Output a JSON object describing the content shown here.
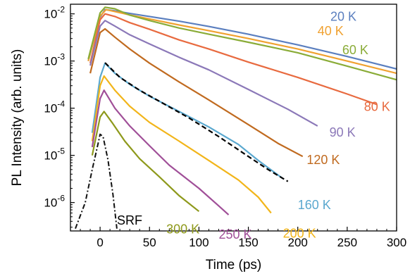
{
  "chart_data": {
    "type": "line",
    "xlabel": "Time (ps)",
    "ylabel": "PL Intensity (arb. units)",
    "xlim": [
      -30,
      300
    ],
    "ylim": [
      2.5e-07,
      0.016
    ],
    "yscale": "log",
    "grid": false,
    "legend": "inline labels next to curves",
    "xticks": [
      {
        "value": 0,
        "label": "0"
      },
      {
        "value": 50,
        "label": "50"
      },
      {
        "value": 100,
        "label": "100"
      },
      {
        "value": 150,
        "label": "150"
      },
      {
        "value": 200,
        "label": "200"
      },
      {
        "value": 250,
        "label": "250"
      },
      {
        "value": 300,
        "label": "300"
      }
    ],
    "yticks": [
      {
        "value": 0.01,
        "base": "10",
        "exp": "-2"
      },
      {
        "value": 0.001,
        "base": "10",
        "exp": "-3"
      },
      {
        "value": 0.0001,
        "base": "10",
        "exp": "-4"
      },
      {
        "value": 1e-05,
        "base": "10",
        "exp": "-5"
      },
      {
        "value": 1e-06,
        "base": "10",
        "exp": "-6"
      }
    ],
    "series": [
      {
        "name": "20 K",
        "color": "#5b7fbf",
        "label_x": 233,
        "label_y": 0.0071,
        "points": [
          [
            -12,
            0.001
          ],
          [
            0,
            0.0085
          ],
          [
            5,
            0.0123
          ],
          [
            15,
            0.0116
          ],
          [
            30,
            0.0102
          ],
          [
            50,
            0.0088
          ],
          [
            80,
            0.007
          ],
          [
            110,
            0.0054
          ],
          [
            150,
            0.0037
          ],
          [
            200,
            0.0022
          ],
          [
            250,
            0.00125
          ],
          [
            300,
            0.00068
          ]
        ]
      },
      {
        "name": "40 K",
        "color": "#f0a130",
        "label_x": 220,
        "label_y": 0.0035,
        "points": [
          [
            -12,
            0.001
          ],
          [
            0,
            0.009
          ],
          [
            6,
            0.0123
          ],
          [
            15,
            0.0112
          ],
          [
            30,
            0.0095
          ],
          [
            50,
            0.0078
          ],
          [
            80,
            0.0058
          ],
          [
            110,
            0.0044
          ],
          [
            150,
            0.003
          ],
          [
            200,
            0.0018
          ],
          [
            250,
            0.001
          ],
          [
            300,
            0.00055
          ]
        ]
      },
      {
        "name": "60 K",
        "color": "#8aac38",
        "label_x": 245,
        "label_y": 0.0014,
        "points": [
          [
            -12,
            0.0011
          ],
          [
            0,
            0.0105
          ],
          [
            5,
            0.0138
          ],
          [
            15,
            0.0128
          ],
          [
            30,
            0.0094
          ],
          [
            50,
            0.0072
          ],
          [
            80,
            0.005
          ],
          [
            110,
            0.0037
          ],
          [
            150,
            0.0025
          ],
          [
            200,
            0.0015
          ],
          [
            250,
            0.00078
          ],
          [
            300,
            0.0004
          ]
        ]
      },
      {
        "name": "80 K",
        "color": "#e86a3f",
        "label_x": 267,
        "label_y": 8.8e-05,
        "points": [
          [
            -10,
            0.0009
          ],
          [
            0,
            0.0075
          ],
          [
            5,
            0.01
          ],
          [
            15,
            0.0088
          ],
          [
            30,
            0.0065
          ],
          [
            50,
            0.0047
          ],
          [
            80,
            0.0028
          ],
          [
            110,
            0.0018
          ],
          [
            150,
            0.00095
          ],
          [
            200,
            0.00045
          ],
          [
            250,
            0.0002
          ],
          [
            280,
            0.00012
          ]
        ]
      },
      {
        "name": "90 K",
        "color": "#8b78b8",
        "label_x": 232,
        "label_y": 2.5e-05,
        "points": [
          [
            -10,
            0.0008
          ],
          [
            0,
            0.0055
          ],
          [
            5,
            0.0072
          ],
          [
            15,
            0.0055
          ],
          [
            30,
            0.0036
          ],
          [
            50,
            0.0023
          ],
          [
            80,
            0.0012
          ],
          [
            110,
            0.00065
          ],
          [
            150,
            0.00025
          ],
          [
            190,
            9.5e-05
          ],
          [
            220,
            4.2e-05
          ]
        ]
      },
      {
        "name": "120 K",
        "color": "#c06a1f",
        "label_x": 209,
        "label_y": 6.5e-06,
        "points": [
          [
            -10,
            0.00055
          ],
          [
            0,
            0.004
          ],
          [
            5,
            0.0048
          ],
          [
            15,
            0.0032
          ],
          [
            30,
            0.0018
          ],
          [
            50,
            0.0009
          ],
          [
            80,
            0.00036
          ],
          [
            110,
            0.00015
          ],
          [
            150,
            4.5e-05
          ],
          [
            180,
            1.8e-05
          ],
          [
            205,
            9.5e-06
          ]
        ]
      },
      {
        "name": "160 K",
        "color": "#5aa8cf",
        "label_x": 200,
        "label_y": 7.2e-07,
        "points": [
          [
            -8,
            3e-05
          ],
          [
            0,
            0.00045
          ],
          [
            5,
            0.0009
          ],
          [
            15,
            0.00055
          ],
          [
            30,
            0.00032
          ],
          [
            50,
            0.00018
          ],
          [
            80,
            8.5e-05
          ],
          [
            110,
            4e-05
          ],
          [
            140,
            1.7e-05
          ],
          [
            160,
            7.8e-06
          ],
          [
            185,
            3.2e-06
          ]
        ]
      },
      {
        "name": "200 K",
        "color": "#f2b51a",
        "label_x": 185,
        "label_y": 1.8e-07,
        "points": [
          [
            -8,
            2e-05
          ],
          [
            0,
            0.0003
          ],
          [
            4,
            0.00048
          ],
          [
            15,
            0.00024
          ],
          [
            30,
            0.00011
          ],
          [
            50,
            5e-05
          ],
          [
            80,
            2e-05
          ],
          [
            110,
            7.8e-06
          ],
          [
            140,
            3e-06
          ],
          [
            160,
            1.3e-06
          ],
          [
            173,
            6e-07
          ]
        ]
      },
      {
        "name": "250 K",
        "color": "#a04f98",
        "label_x": 120,
        "label_y": 1.7e-07,
        "points": [
          [
            -8,
            1.5e-05
          ],
          [
            0,
            0.00016
          ],
          [
            4,
            0.00024
          ],
          [
            15,
            0.0001
          ],
          [
            30,
            4.2e-05
          ],
          [
            50,
            1.6e-05
          ],
          [
            70,
            6.2e-06
          ],
          [
            100,
            2e-06
          ],
          [
            120,
            8.5e-07
          ],
          [
            130,
            5.5e-07
          ]
        ]
      },
      {
        "name": "300 K",
        "color": "#8e991b",
        "label_x": 67,
        "label_y": 2.2e-07,
        "points": [
          [
            -8,
            1e-05
          ],
          [
            0,
            6.5e-05
          ],
          [
            4,
            8.5e-05
          ],
          [
            12,
            5e-05
          ],
          [
            25,
            2e-05
          ],
          [
            40,
            8.5e-06
          ],
          [
            60,
            3.5e-06
          ],
          [
            80,
            1.4e-06
          ],
          [
            100,
            6.5e-07
          ]
        ]
      },
      {
        "name": "SRF",
        "color": "#111111",
        "label_x": 17,
        "label_y": 3.4e-07,
        "points": [
          [
            -25,
            2.8e-07
          ],
          [
            -15,
            1e-06
          ],
          [
            -8,
            5e-06
          ],
          [
            -2,
            1.8e-05
          ],
          [
            0,
            2.8e-05
          ],
          [
            3,
            2.5e-05
          ],
          [
            8,
            8e-06
          ],
          [
            13,
            1.5e-06
          ],
          [
            17,
            2.8e-07
          ]
        ]
      }
    ],
    "fit": {
      "points": [
        [
          5,
          0.00092
        ],
        [
          20,
          0.00045
        ],
        [
          40,
          0.00024
        ],
        [
          60,
          0.00014
        ],
        [
          90,
          6.2e-05
        ],
        [
          120,
          2.5e-05
        ],
        [
          150,
          9.5e-06
        ],
        [
          170,
          5e-06
        ],
        [
          190,
          2.8e-06
        ]
      ]
    }
  }
}
